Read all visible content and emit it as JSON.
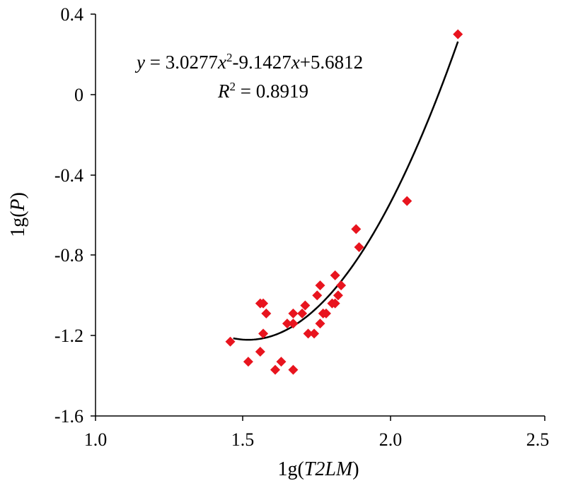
{
  "chart_data": {
    "type": "scatter",
    "xlabel_prefix": "1g(",
    "xlabel_var": "T2LM",
    "xlabel_suffix": ")",
    "ylabel_prefix": "1g(",
    "ylabel_var": "P",
    "ylabel_suffix": ")",
    "xlim": [
      1.0,
      2.5
    ],
    "ylim": [
      -1.6,
      0.4
    ],
    "x_ticks": [
      "1.0",
      "1.5",
      "2.0",
      "2.5"
    ],
    "y_ticks": [
      "-1.6",
      "-1.2",
      "-0.8",
      "-0.4",
      "0",
      "0.4"
    ],
    "grid": false,
    "marker_color": "#e8141e",
    "curve_color": "#000000",
    "equation": {
      "y": "y",
      "eq_part1": " = 3.0277",
      "x1": "x",
      "sup": "2",
      "eq_part2": "-9.1427",
      "x2": "x",
      "eq_part3": "+5.6812",
      "r": "R",
      "r_sup": "2",
      "r_value": " = 0.8919"
    },
    "fit": {
      "a": 3.0277,
      "b": -9.1427,
      "c": 5.6812,
      "x_from": 1.46,
      "x_to": 2.21
    },
    "points": [
      {
        "x": 1.45,
        "y": -1.23
      },
      {
        "x": 1.51,
        "y": -1.33
      },
      {
        "x": 1.55,
        "y": -1.28
      },
      {
        "x": 1.55,
        "y": -1.04
      },
      {
        "x": 1.56,
        "y": -1.04
      },
      {
        "x": 1.56,
        "y": -1.19
      },
      {
        "x": 1.57,
        "y": -1.09
      },
      {
        "x": 1.6,
        "y": -1.37
      },
      {
        "x": 1.62,
        "y": -1.33
      },
      {
        "x": 1.64,
        "y": -1.14
      },
      {
        "x": 1.66,
        "y": -1.37
      },
      {
        "x": 1.66,
        "y": -1.09
      },
      {
        "x": 1.66,
        "y": -1.14
      },
      {
        "x": 1.69,
        "y": -1.09
      },
      {
        "x": 1.7,
        "y": -1.05
      },
      {
        "x": 1.71,
        "y": -1.19
      },
      {
        "x": 1.73,
        "y": -1.19
      },
      {
        "x": 1.74,
        "y": -1.0
      },
      {
        "x": 1.75,
        "y": -0.95
      },
      {
        "x": 1.75,
        "y": -1.14
      },
      {
        "x": 1.76,
        "y": -1.09
      },
      {
        "x": 1.77,
        "y": -1.09
      },
      {
        "x": 1.79,
        "y": -1.04
      },
      {
        "x": 1.8,
        "y": -0.9
      },
      {
        "x": 1.8,
        "y": -1.04
      },
      {
        "x": 1.81,
        "y": -1.0
      },
      {
        "x": 1.82,
        "y": -0.95
      },
      {
        "x": 1.87,
        "y": -0.67
      },
      {
        "x": 1.88,
        "y": -0.76
      },
      {
        "x": 2.04,
        "y": -0.53
      },
      {
        "x": 2.21,
        "y": 0.3
      }
    ]
  }
}
